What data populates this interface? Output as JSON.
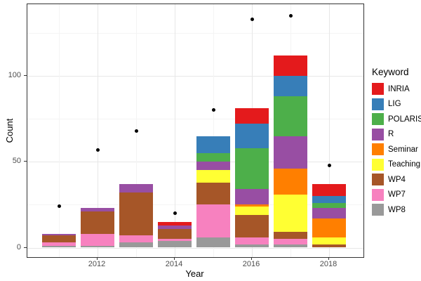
{
  "chart_data": {
    "type": "bar",
    "stacked": true,
    "title": "",
    "xlabel": "Year",
    "ylabel": "Count",
    "legend_title": "Keyword",
    "legend_position": "right",
    "grid": true,
    "background": "#ffffff",
    "panel_border_color": "#333333",
    "dot_color": "#000000",
    "categories": [
      2011,
      2012,
      2013,
      2014,
      2015,
      2016,
      2017,
      2018
    ],
    "x_major_ticks": [
      2012,
      2014,
      2016,
      2018
    ],
    "x_minor_years": [
      2011,
      2013,
      2015,
      2017
    ],
    "y_major_ticks": [
      0,
      50,
      100
    ],
    "y_minor_ticks": [
      25,
      75,
      125
    ],
    "ylim": [
      0,
      142
    ],
    "stack_order_bottom_to_top": [
      "WP8",
      "WP7",
      "WP4",
      "Teaching",
      "Seminar",
      "R",
      "POLARIS",
      "LIG",
      "INRIA"
    ],
    "series": [
      {
        "name": "INRIA",
        "color": "#e41a1c",
        "values": [
          0,
          0,
          0,
          2,
          0,
          9,
          12,
          7
        ]
      },
      {
        "name": "LIG",
        "color": "#377eb8",
        "values": [
          0,
          0,
          0,
          0,
          10,
          14,
          12,
          4
        ]
      },
      {
        "name": "POLARIS",
        "color": "#4daf4a",
        "values": [
          0,
          0,
          0,
          0,
          5,
          24,
          23,
          3
        ]
      },
      {
        "name": "R",
        "color": "#984ea3",
        "values": [
          1,
          2,
          5,
          2,
          5,
          9,
          19,
          6
        ]
      },
      {
        "name": "Seminar",
        "color": "#ff7f00",
        "values": [
          0,
          0,
          0,
          0,
          0,
          1,
          15,
          11
        ]
      },
      {
        "name": "Teaching",
        "color": "#ffff33",
        "values": [
          0,
          0,
          0,
          0,
          7,
          5,
          22,
          4
        ]
      },
      {
        "name": "WP4",
        "color": "#a65628",
        "values": [
          4,
          13,
          25,
          6,
          13,
          13,
          4,
          2
        ]
      },
      {
        "name": "WP7",
        "color": "#f781bf",
        "values": [
          2,
          7,
          4,
          1,
          19,
          4,
          3,
          0
        ]
      },
      {
        "name": "WP8",
        "color": "#999999",
        "values": [
          1,
          1,
          3,
          4,
          6,
          2,
          2,
          0
        ]
      }
    ],
    "points": {
      "marker": "circle",
      "color": "#000000",
      "values": [
        24,
        57,
        68,
        20,
        80,
        133,
        135,
        48
      ]
    }
  }
}
